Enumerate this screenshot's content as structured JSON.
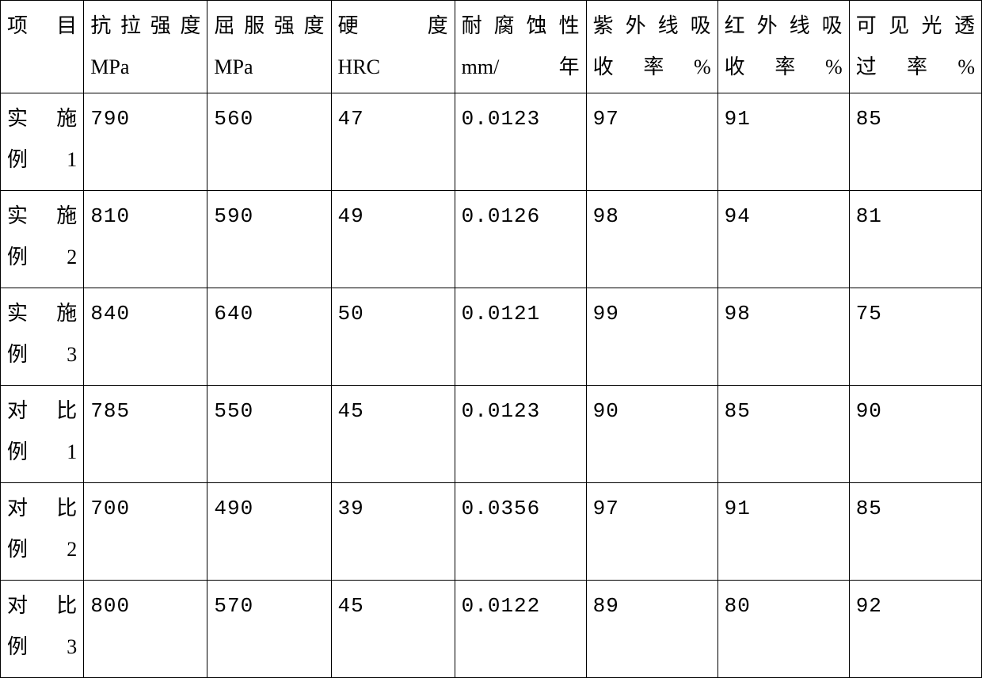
{
  "table": {
    "background_color": "#ffffff",
    "border_color": "#000000",
    "text_color": "#000000",
    "font_family": "SimSun",
    "font_size_pt": 20,
    "columns": [
      {
        "key": "project",
        "line1": "项目",
        "line2": ""
      },
      {
        "key": "tensile_strength",
        "line1": "抗拉强度",
        "line2": "MPa"
      },
      {
        "key": "yield_strength",
        "line1": "屈服强度",
        "line2": "MPa"
      },
      {
        "key": "hardness",
        "line1": "硬度",
        "line2": "HRC"
      },
      {
        "key": "corrosion",
        "line1": "耐腐蚀性",
        "line2": "mm/年"
      },
      {
        "key": "uv_absorb",
        "line1": "紫外线吸",
        "line2": "收率%"
      },
      {
        "key": "ir_absorb",
        "line1": "红外线吸",
        "line2": "收率%"
      },
      {
        "key": "visible_trans",
        "line1": "可见光透",
        "line2": "过率%"
      }
    ],
    "rows": [
      {
        "label_line1": "实施",
        "label_line2": "例 1",
        "values": [
          "790",
          "560",
          "47",
          "0.0123",
          "97",
          "91",
          "85"
        ]
      },
      {
        "label_line1": "实施",
        "label_line2": "例 2",
        "values": [
          "810",
          "590",
          "49",
          "0.0126",
          "98",
          "94",
          "81"
        ]
      },
      {
        "label_line1": "实施",
        "label_line2": "例 3",
        "values": [
          "840",
          "640",
          "50",
          "0.0121",
          "99",
          "98",
          "75"
        ]
      },
      {
        "label_line1": "对比",
        "label_line2": "例 1",
        "values": [
          "785",
          "550",
          "45",
          "0.0123",
          "90",
          "85",
          "90"
        ]
      },
      {
        "label_line1": "对比",
        "label_line2": "例 2",
        "values": [
          "700",
          "490",
          "39",
          "0.0356",
          "97",
          "91",
          "85"
        ]
      },
      {
        "label_line1": "对比",
        "label_line2": "例 3",
        "values": [
          "800",
          "570",
          "45",
          "0.0122",
          "89",
          "80",
          "92"
        ]
      }
    ]
  }
}
